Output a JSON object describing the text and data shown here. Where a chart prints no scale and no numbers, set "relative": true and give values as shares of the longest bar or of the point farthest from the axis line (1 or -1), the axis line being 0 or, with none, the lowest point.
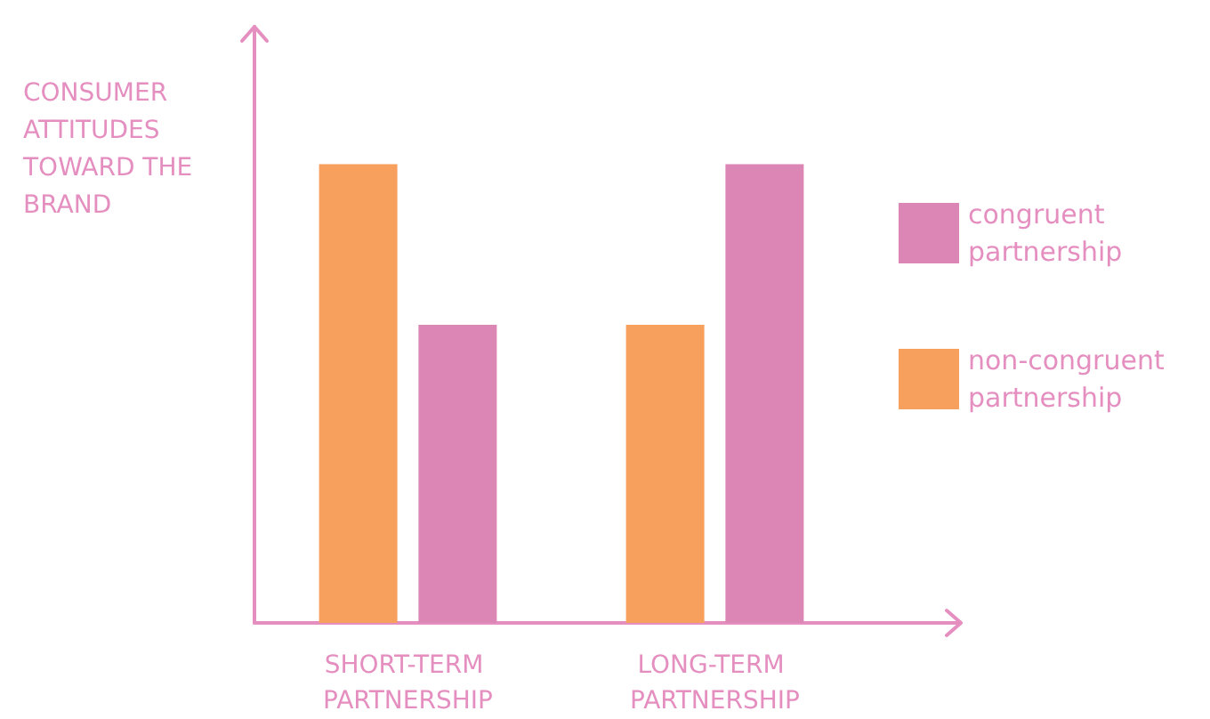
{
  "chart_data": {
    "type": "bar",
    "relative": true,
    "ylabel": "CONSUMER ATTITUDES TOWARD THE BRAND",
    "categories": [
      "SHORT-TERM PARTNERSHIP",
      "LONG-TERM PARTNERSHIP"
    ],
    "series": [
      {
        "name": "non-congruent partnership",
        "color": "#f7a05e",
        "values": [
          1,
          0.65
        ]
      },
      {
        "name": "congruent partnership",
        "color": "#dc86b6",
        "values": [
          0.65,
          1
        ]
      }
    ],
    "legend": "right",
    "grid": false
  }
}
